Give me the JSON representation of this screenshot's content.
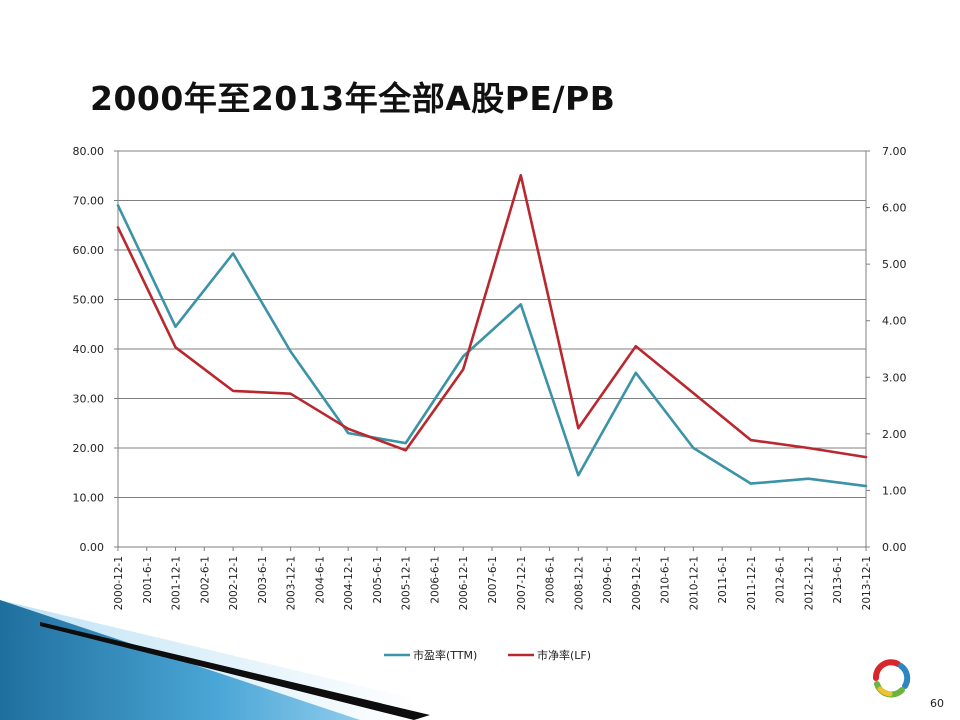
{
  "slide": {
    "title": "2000年至2013年全部A股PE/PB",
    "page_number": "60"
  },
  "colors": {
    "pe": "#3a93a6",
    "pb": "#b8282e",
    "gridline": "#7f7f7f",
    "axis": "#7f7f7f"
  },
  "chart_data": {
    "type": "line",
    "title": "",
    "categories": [
      "2000-12-1",
      "2001-6-1",
      "2001-12-1",
      "2002-6-1",
      "2002-12-1",
      "2003-6-1",
      "2003-12-1",
      "2004-6-1",
      "2004-12-1",
      "2005-6-1",
      "2005-12-1",
      "2006-6-1",
      "2006-12-1",
      "2007-6-1",
      "2007-12-1",
      "2008-6-1",
      "2008-12-1",
      "2009-6-1",
      "2009-12-1",
      "2010-6-1",
      "2010-12-1",
      "2011-6-1",
      "2011-12-1",
      "2012-6-1",
      "2012-12-1",
      "2013-6-1",
      "2013-12-1"
    ],
    "y_left": {
      "ylim": [
        0,
        80
      ],
      "ticks": [
        "0.00",
        "10.00",
        "20.00",
        "30.00",
        "40.00",
        "50.00",
        "60.00",
        "70.00",
        "80.00"
      ]
    },
    "y_right": {
      "ylim": [
        0,
        7
      ],
      "ticks": [
        "0.00",
        "1.00",
        "2.00",
        "3.00",
        "4.00",
        "5.00",
        "6.00",
        "7.00"
      ]
    },
    "series": [
      {
        "name": "市盈率(TTM)",
        "axis": "left",
        "x": [
          "2000-12-1",
          "2001-12-1",
          "2002-12-1",
          "2003-12-1",
          "2004-12-1",
          "2005-12-1",
          "2006-12-1",
          "2007-12-1",
          "2008-12-1",
          "2009-12-1",
          "2010-12-1",
          "2011-12-1",
          "2012-12-1",
          "2013-12-1"
        ],
        "values": [
          69.0,
          44.5,
          59.3,
          39.5,
          23.0,
          21.0,
          38.5,
          49.0,
          14.5,
          35.2,
          20.0,
          12.8,
          13.8,
          12.3
        ]
      },
      {
        "name": "市净率(LF)",
        "axis": "right",
        "x": [
          "2000-12-1",
          "2001-12-1",
          "2002-12-1",
          "2003-12-1",
          "2004-12-1",
          "2005-12-1",
          "2006-12-1",
          "2007-12-1",
          "2008-12-1",
          "2009-12-1",
          "2010-12-1",
          "2011-12-1",
          "2012-12-1",
          "2013-12-1"
        ],
        "values": [
          5.65,
          3.53,
          2.76,
          2.71,
          2.09,
          1.71,
          3.14,
          6.57,
          2.1,
          3.55,
          2.72,
          1.89,
          1.75,
          1.59
        ]
      }
    ],
    "legend": {
      "position": "bottom"
    },
    "grid": true
  }
}
